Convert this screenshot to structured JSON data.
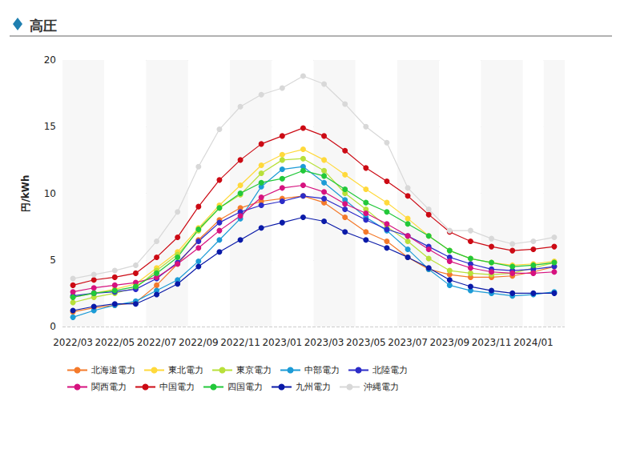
{
  "chart_data": {
    "type": "line",
    "title": "高圧",
    "y_label": "円/kWh",
    "categories": [
      "2022/03",
      null,
      "2022/05",
      null,
      "2022/07",
      null,
      "2022/09",
      null,
      "2022/11",
      null,
      "2023/01",
      null,
      "2023/03",
      null,
      "2023/05",
      null,
      "2023/07",
      null,
      "2023/09",
      null,
      "2023/11",
      null,
      "2024/01",
      null
    ],
    "series": [
      {
        "name": "北海道電力",
        "color": "#f47a2b",
        "values": [
          1.1,
          1.4,
          1.6,
          1.8,
          3.1,
          4.7,
          6.5,
          8.0,
          8.9,
          9.4,
          9.6,
          9.8,
          9.3,
          8.2,
          7.1,
          6.4,
          5.2,
          4.3,
          3.9,
          3.7,
          3.7,
          3.8,
          4.1,
          4.5
        ]
      },
      {
        "name": "東北電力",
        "color": "#ffd93b",
        "values": [
          2.2,
          2.5,
          2.8,
          3.2,
          4.4,
          5.6,
          7.4,
          9.1,
          10.6,
          12.1,
          12.9,
          13.3,
          12.5,
          11.4,
          10.3,
          9.3,
          8.1,
          6.8,
          5.7,
          5.1,
          4.8,
          4.6,
          4.7,
          4.9
        ]
      },
      {
        "name": "東京電力",
        "color": "#b8e03a",
        "values": [
          1.8,
          2.2,
          2.5,
          2.9,
          4.2,
          5.4,
          7.2,
          8.9,
          9.9,
          11.5,
          12.5,
          12.6,
          11.7,
          10.0,
          8.8,
          7.5,
          6.4,
          5.1,
          4.2,
          4.0,
          3.9,
          4.0,
          4.4,
          4.8
        ]
      },
      {
        "name": "中部電力",
        "color": "#1c9bd6",
        "values": [
          0.7,
          1.2,
          1.6,
          1.9,
          2.7,
          3.5,
          4.9,
          6.5,
          8.1,
          10.5,
          11.8,
          12.0,
          10.8,
          9.5,
          8.2,
          7.2,
          5.8,
          4.3,
          3.1,
          2.7,
          2.5,
          2.3,
          2.4,
          2.6
        ]
      },
      {
        "name": "北陸電力",
        "color": "#2c2cc8",
        "values": [
          2.3,
          2.5,
          2.6,
          2.8,
          3.6,
          4.8,
          6.4,
          7.8,
          8.6,
          9.1,
          9.4,
          9.8,
          9.6,
          8.8,
          8.0,
          7.3,
          6.8,
          6.0,
          5.2,
          4.7,
          4.3,
          4.2,
          4.3,
          4.5
        ]
      },
      {
        "name": "関西電力",
        "color": "#d6127f",
        "values": [
          2.6,
          2.9,
          3.1,
          3.3,
          3.7,
          4.7,
          5.9,
          7.2,
          8.3,
          9.7,
          10.4,
          10.6,
          10.1,
          9.2,
          8.5,
          7.7,
          6.8,
          5.8,
          4.9,
          4.4,
          4.1,
          4.0,
          4.0,
          4.1
        ]
      },
      {
        "name": "中国電力",
        "color": "#cc0a14",
        "values": [
          3.1,
          3.5,
          3.7,
          4.0,
          5.2,
          6.7,
          9.0,
          11.0,
          12.5,
          13.7,
          14.3,
          14.9,
          14.3,
          13.2,
          11.9,
          10.9,
          9.8,
          8.4,
          7.1,
          6.4,
          6.0,
          5.7,
          5.8,
          6.0
        ]
      },
      {
        "name": "四国電力",
        "color": "#22c83a",
        "values": [
          2.2,
          2.5,
          2.7,
          3.0,
          4.0,
          5.2,
          7.3,
          8.9,
          10.0,
          10.8,
          11.1,
          11.7,
          11.3,
          10.3,
          9.3,
          8.6,
          7.7,
          6.8,
          5.7,
          5.1,
          4.8,
          4.5,
          4.6,
          4.8
        ]
      },
      {
        "name": "九州電力",
        "color": "#0a1aa8",
        "values": [
          1.2,
          1.5,
          1.7,
          1.7,
          2.4,
          3.2,
          4.5,
          5.6,
          6.5,
          7.4,
          7.8,
          8.2,
          7.9,
          7.1,
          6.5,
          5.9,
          5.2,
          4.4,
          3.5,
          3.0,
          2.7,
          2.5,
          2.5,
          2.5
        ]
      },
      {
        "name": "沖縄電力",
        "color": "#d8d8d8",
        "values": [
          3.6,
          3.9,
          4.2,
          4.6,
          6.4,
          8.6,
          12.0,
          14.8,
          16.5,
          17.4,
          17.9,
          18.8,
          18.2,
          16.7,
          15.0,
          13.8,
          10.4,
          8.8,
          7.2,
          7.2,
          6.6,
          6.2,
          6.4,
          6.7
        ]
      }
    ],
    "ylim": [
      0,
      20
    ],
    "yticks": [
      0,
      5,
      10,
      15,
      20
    ],
    "grid": true,
    "legend": "bottom",
    "marker": "circle",
    "line_style": "solid"
  }
}
